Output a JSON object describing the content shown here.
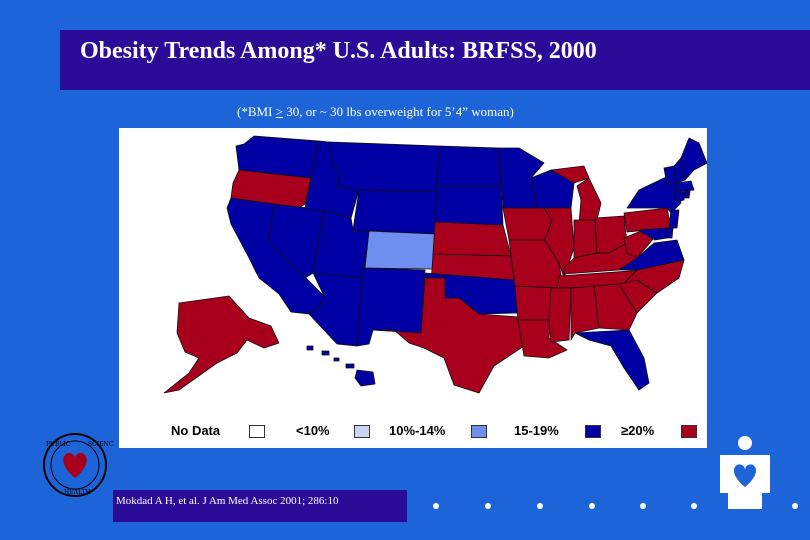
{
  "slide": {
    "title": "Obesity Trends Among* U.S. Adults: BRFSS, 2000",
    "subtitle_prefix": "(*BMI ",
    "subtitle_ge": ">",
    "subtitle_rest": " 30, or ~ 30 lbs overweight for 5’4” woman)",
    "citation": "Mokdad A H, et al. J Am Med Assoc 2001; 286:10"
  },
  "legend": [
    {
      "label": "No Data",
      "color": "#ffffff"
    },
    {
      "label": "<10%",
      "color": "#c8d8f4"
    },
    {
      "label": "10%-14%",
      "color": "#6f8ff0"
    },
    {
      "label": "15-19%",
      "color": "#0000a4"
    },
    {
      "label": "≥20%",
      "color": "#a8001c"
    }
  ],
  "colors": {
    "background": "#1c64d8",
    "title_bar": "#2a0c99",
    "category_10_14": "#6f8ff0",
    "category_15_19": "#0000a4",
    "category_20_plus": "#a8001c"
  },
  "states": {
    "WA": "15-19%",
    "OR": "≥20%",
    "CA": "15-19%",
    "NV": "15-19%",
    "ID": "15-19%",
    "MT": "15-19%",
    "WY": "15-19%",
    "UT": "15-19%",
    "AZ": "15-19%",
    "CO": "10%-14%",
    "NM": "15-19%",
    "ND": "15-19%",
    "SD": "15-19%",
    "NE": "≥20%",
    "KS": "≥20%",
    "OK": "15-19%",
    "TX": "≥20%",
    "MN": "15-19%",
    "IA": "≥20%",
    "MO": "≥20%",
    "AR": "≥20%",
    "LA": "≥20%",
    "WI": "15-19%",
    "IL": "≥20%",
    "MS": "≥20%",
    "MI": "≥20%",
    "IN": "≥20%",
    "OH": "≥20%",
    "KY": "≥20%",
    "TN": "≥20%",
    "AL": "≥20%",
    "GA": "≥20%",
    "FL": "15-19%",
    "SC": "≥20%",
    "NC": "≥20%",
    "VA": "15-19%",
    "WV": "≥20%",
    "PA": "≥20%",
    "NY": "15-19%",
    "VT": "15-19%",
    "NH": "15-19%",
    "ME": "15-19%",
    "MA": "15-19%",
    "CT": "15-19%",
    "RI": "15-19%",
    "NJ": "15-19%",
    "DE": "15-19%",
    "MD": "15-19%",
    "AK": "≥20%",
    "HI": "15-19%"
  }
}
